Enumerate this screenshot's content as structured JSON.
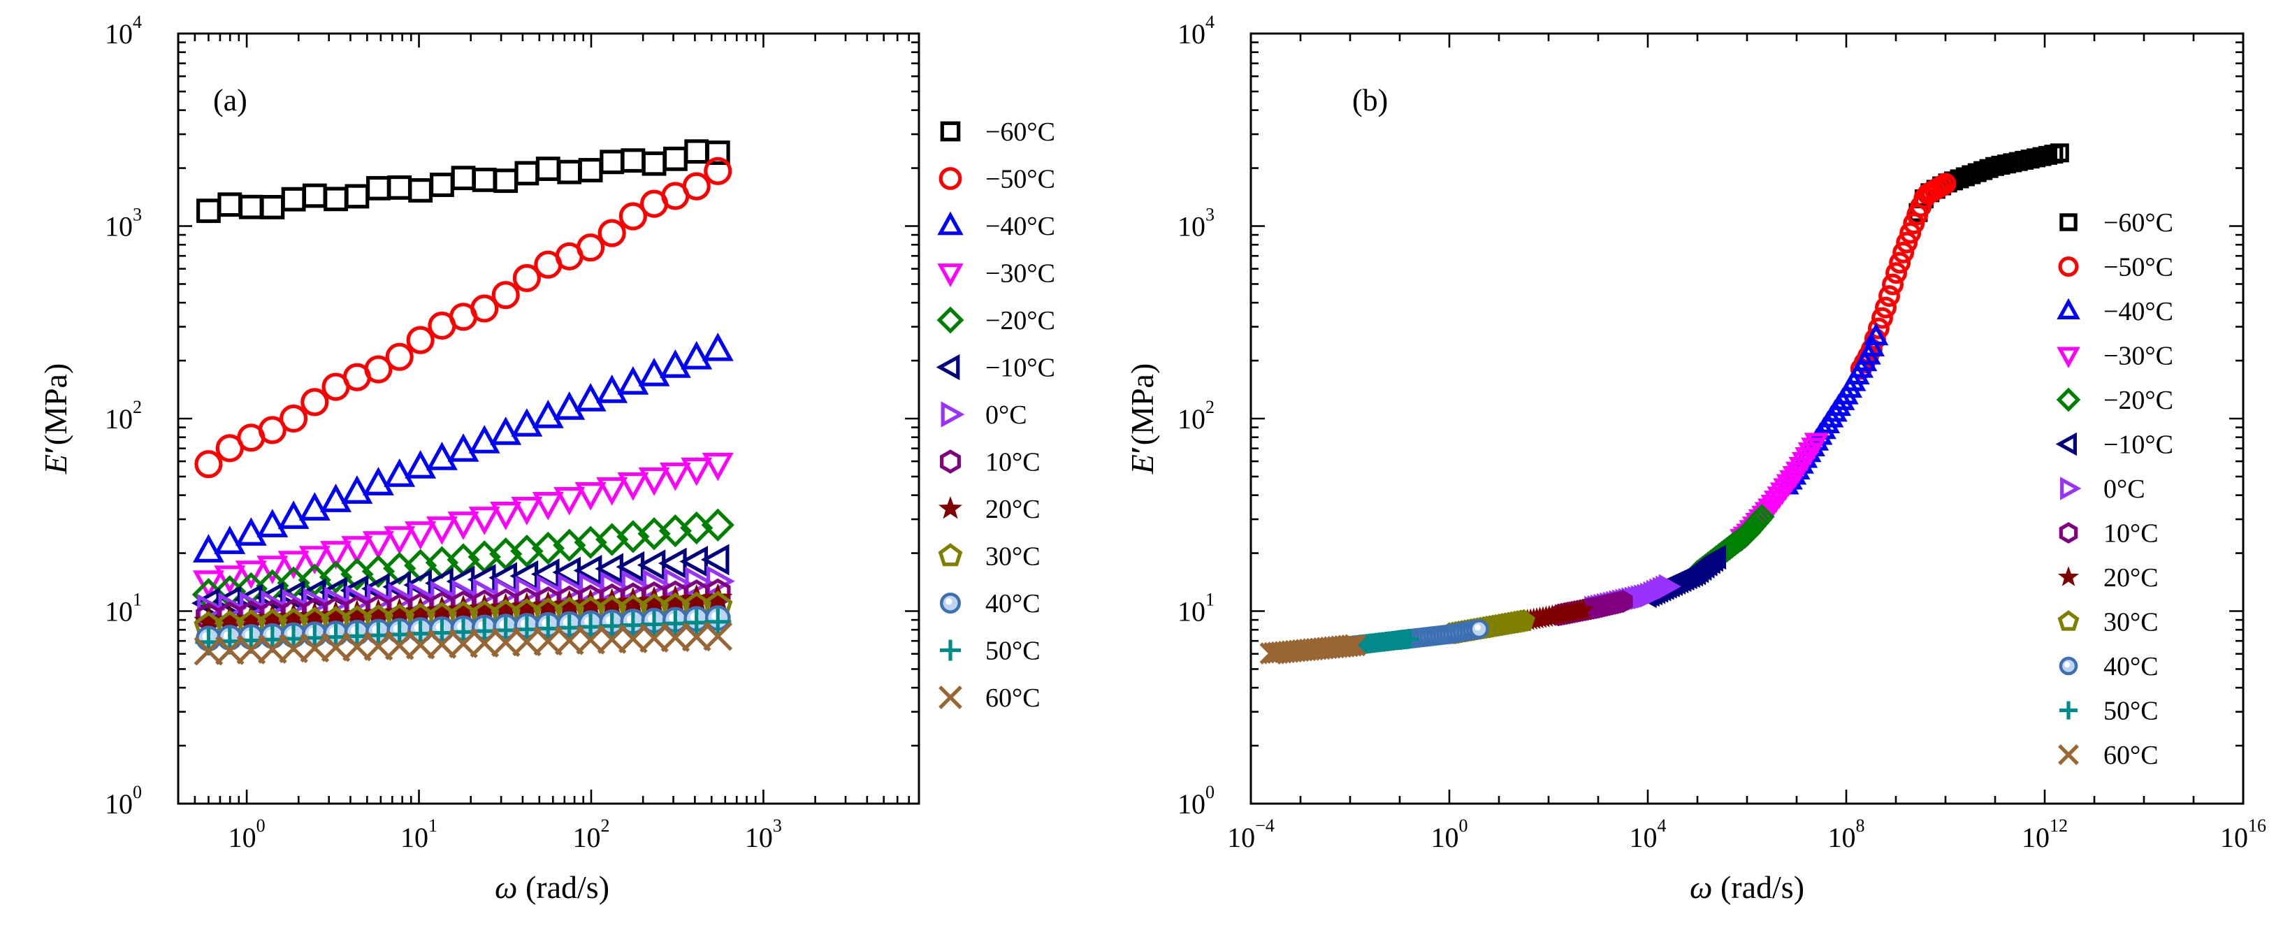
{
  "chart_data": [
    {
      "type": "scatter",
      "panel_label": "(a)",
      "xscale": "log",
      "yscale": "log",
      "xlim": [
        0.4,
        8000
      ],
      "ylim": [
        1,
        10000
      ],
      "x_tick_labels": [
        {
          "value": 1,
          "base": "10",
          "exp": "0"
        },
        {
          "value": 10,
          "base": "10",
          "exp": "1"
        },
        {
          "value": 100,
          "base": "10",
          "exp": "2"
        },
        {
          "value": 1000,
          "base": "10",
          "exp": "3"
        }
      ],
      "y_tick_labels": [
        {
          "value": 1,
          "base": "10",
          "exp": "0"
        },
        {
          "value": 10,
          "base": "10",
          "exp": "1"
        },
        {
          "value": 100,
          "base": "10",
          "exp": "2"
        },
        {
          "value": 1000,
          "base": "10",
          "exp": "3"
        },
        {
          "value": 10000,
          "base": "10",
          "exp": "4"
        }
      ],
      "xlabel": {
        "symbol": "ω",
        "unit": " (rad/s)"
      },
      "ylabel": {
        "symbol": "E",
        "prime": "′",
        "unit": "(MPa)"
      },
      "legend_position": "right",
      "x": [
        0.6,
        0.797,
        1.06,
        1.41,
        1.87,
        2.48,
        3.29,
        4.37,
        5.81,
        7.71,
        10.2,
        13.6,
        18.1,
        24.0,
        31.9,
        42.3,
        56.2,
        74.7,
        99.2,
        132,
        175,
        232,
        308,
        409,
        544
      ],
      "series": [
        {
          "name": "−60°C",
          "marker": "square",
          "color": "#000000",
          "y_start": 1200,
          "y_end": 2400
        },
        {
          "name": "−50°C",
          "marker": "circle",
          "color": "#ff0000",
          "y_start": 58,
          "y_end": 1950
        },
        {
          "name": "−40°C",
          "marker": "triangle-up",
          "color": "#0000ff",
          "y_start": 20.5,
          "y_end": 228
        },
        {
          "name": "−30°C",
          "marker": "triangle-down",
          "color": "#ff00ff",
          "y_start": 14.2,
          "y_end": 58
        },
        {
          "name": "−20°C",
          "marker": "diamond",
          "color": "#008000",
          "y_start": 12.2,
          "y_end": 28
        },
        {
          "name": "−10°C",
          "marker": "triangle-left",
          "color": "#000080",
          "y_start": 11.0,
          "y_end": 18.5
        },
        {
          "name": "0°C",
          "marker": "triangle-right",
          "color": "#9932ff",
          "y_start": 10.2,
          "y_end": 14.3
        },
        {
          "name": "10°C",
          "marker": "hexagon",
          "color": "#800080",
          "y_start": 9.3,
          "y_end": 12.4
        },
        {
          "name": "20°C",
          "marker": "star",
          "color": "#800000",
          "y_start": 8.8,
          "y_end": 11.6
        },
        {
          "name": "30°C",
          "marker": "pentagon",
          "color": "#808000",
          "y_start": 8.3,
          "y_end": 10.6
        },
        {
          "name": "40°C",
          "marker": "dot-circle",
          "color": "#4f8ad0",
          "y_start": 7.2,
          "y_end": 9.2
        },
        {
          "name": "50°C",
          "marker": "plus",
          "color": "#008b8b",
          "y_start": 6.9,
          "y_end": 8.8
        },
        {
          "name": "60°C",
          "marker": "x",
          "color": "#996633",
          "y_start": 6.2,
          "y_end": 7.4
        }
      ]
    },
    {
      "type": "scatter",
      "panel_label": "(b)",
      "xscale": "log",
      "yscale": "log",
      "xlim": [
        0.0001,
        1e+16
      ],
      "ylim": [
        1,
        10000
      ],
      "x_tick_labels": [
        {
          "value": 0.0001,
          "base": "10",
          "exp": "−4"
        },
        {
          "value": 1,
          "base": "10",
          "exp": "0"
        },
        {
          "value": 10000,
          "base": "10",
          "exp": "4"
        },
        {
          "value": 100000000.0,
          "base": "10",
          "exp": "8"
        },
        {
          "value": 1000000000000.0,
          "base": "10",
          "exp": "12"
        },
        {
          "value": 1e+16,
          "base": "10",
          "exp": "16"
        }
      ],
      "y_tick_labels": [
        {
          "value": 1,
          "base": "10",
          "exp": "0"
        },
        {
          "value": 10,
          "base": "10",
          "exp": "1"
        },
        {
          "value": 100,
          "base": "10",
          "exp": "2"
        },
        {
          "value": 1000,
          "base": "10",
          "exp": "3"
        },
        {
          "value": 10000,
          "base": "10",
          "exp": "4"
        }
      ],
      "xlabel": {
        "symbol": "ω",
        "unit": " (rad/s)"
      },
      "ylabel": {
        "symbol": "E",
        "prime": "′",
        "unit": "(MPa)"
      },
      "legend_position": "right",
      "master_curve": [
        [
          -3.6,
          0.78
        ],
        [
          -2,
          0.82
        ],
        [
          0,
          0.88
        ],
        [
          2,
          0.97
        ],
        [
          3,
          1.02
        ],
        [
          4,
          1.08
        ],
        [
          5,
          1.2
        ],
        [
          6,
          1.4
        ],
        [
          6.5,
          1.55
        ],
        [
          7,
          1.72
        ],
        [
          7.5,
          1.92
        ],
        [
          8,
          2.12
        ],
        [
          8.5,
          2.35
        ],
        [
          8.8,
          2.58
        ],
        [
          9,
          2.75
        ],
        [
          9.2,
          2.9
        ],
        [
          9.4,
          3.04
        ],
        [
          9.6,
          3.16
        ],
        [
          10,
          3.22
        ],
        [
          11,
          3.31
        ],
        [
          12.3,
          3.38
        ]
      ],
      "series": [
        {
          "name": "−60°C",
          "marker": "square",
          "color": "#000000",
          "log_x_range": [
            9.45,
            12.3
          ]
        },
        {
          "name": "−50°C",
          "marker": "circle",
          "color": "#ff0000",
          "log_x_range": [
            8.3,
            10.0
          ]
        },
        {
          "name": "−40°C",
          "marker": "triangle-up",
          "color": "#0000ff",
          "log_x_range": [
            6.8,
            8.6
          ]
        },
        {
          "name": "−30°C",
          "marker": "triangle-down",
          "color": "#ff00ff",
          "log_x_range": [
            5.9,
            7.4
          ]
        },
        {
          "name": "−20°C",
          "marker": "diamond",
          "color": "#008000",
          "log_x_range": [
            5.0,
            6.3
          ]
        },
        {
          "name": "−10°C",
          "marker": "triangle-left",
          "color": "#000080",
          "log_x_range": [
            4.0,
            5.4
          ]
        },
        {
          "name": "0°C",
          "marker": "triangle-right",
          "color": "#9932ff",
          "log_x_range": [
            2.9,
            4.4
          ]
        },
        {
          "name": "10°C",
          "marker": "hexagon",
          "color": "#800080",
          "log_x_range": [
            2.2,
            3.5
          ]
        },
        {
          "name": "20°C",
          "marker": "star",
          "color": "#800000",
          "log_x_range": [
            1.2,
            2.7
          ]
        },
        {
          "name": "30°C",
          "marker": "pentagon",
          "color": "#808000",
          "log_x_range": [
            0.0,
            1.5
          ]
        },
        {
          "name": "40°C",
          "marker": "dot-circle",
          "color": "#4f8ad0",
          "log_x_range": [
            -1.0,
            0.6
          ]
        },
        {
          "name": "50°C",
          "marker": "plus",
          "color": "#008b8b",
          "log_x_range": [
            -2.4,
            -0.8
          ]
        },
        {
          "name": "60°C",
          "marker": "x",
          "color": "#996633",
          "log_x_range": [
            -3.6,
            -1.9
          ]
        }
      ]
    }
  ]
}
